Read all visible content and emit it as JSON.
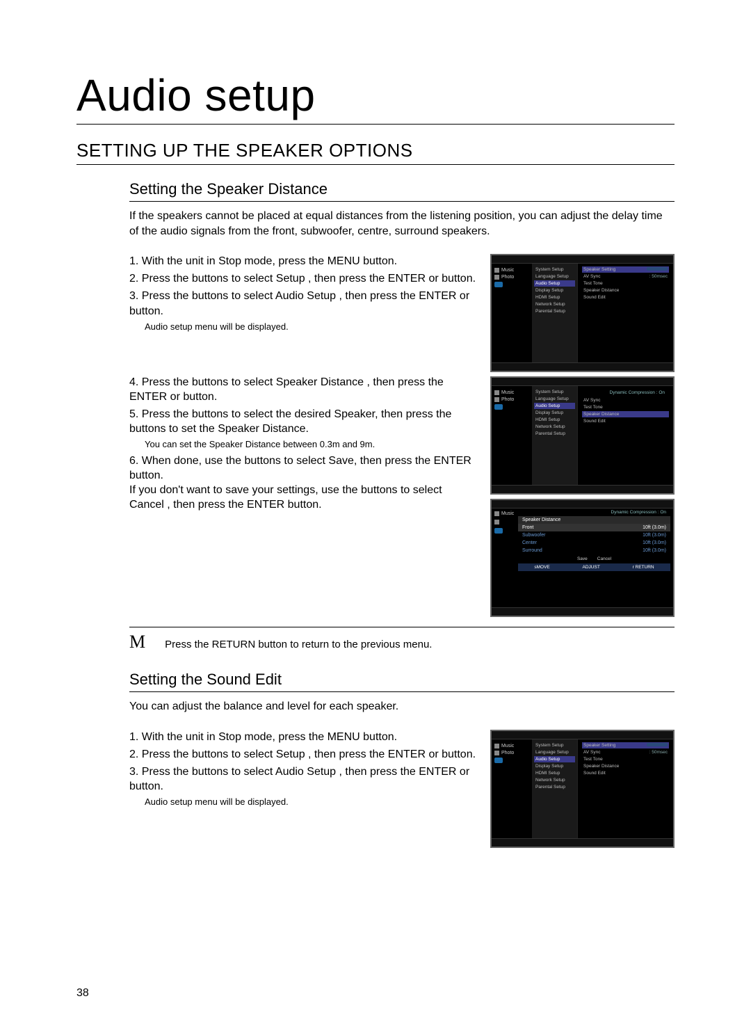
{
  "page": {
    "title": "Audio setup",
    "section": "SETTING UP THE SPEAKER OPTIONS",
    "page_number": "38"
  },
  "speaker_distance": {
    "heading": "Setting the Speaker Distance",
    "intro": "If the speakers cannot be placed at equal distances from the listening position, you can adjust the delay time of the audio signals from the front, subwoofer, centre, surround speakers.",
    "steps_a": [
      {
        "num": "1.",
        "text": "With the unit in Stop mode, press the MENU button."
      },
      {
        "num": "2.",
        "text": "Press the        buttons to select Setup , then press the ENTER or       button."
      },
      {
        "num": "3.",
        "text": "Press the        buttons to select Audio Setup , then press the ENTER or       button."
      }
    ],
    "note_a": "Audio setup menu will be displayed.",
    "steps_b": [
      {
        "num": "4.",
        "text": "Press the        buttons to select Speaker Distance , then press the ENTER or       button."
      },
      {
        "num": "5.",
        "text": "Press the        buttons to select the desired Speaker, then press the        buttons to set the Speaker Distance."
      }
    ],
    "note_b": "You can set the Speaker Distance between 0.3m and 9m.",
    "steps_c": [
      {
        "num": "6.",
        "text": "When done, use the              buttons to select Save, then press the ENTER button.\nIf you don't want to save your settings, use the buttons to select Cancel , then press the ENTER button."
      }
    ]
  },
  "return_note": "Press the RETURN button to return to the previous menu.",
  "sound_edit": {
    "heading": "Setting the Sound Edit",
    "intro": "You can adjust the balance and level for each speaker.",
    "steps": [
      {
        "num": "1.",
        "text": "With the unit in Stop mode, press the MENU button."
      },
      {
        "num": "2.",
        "text": "Press the        buttons to select Setup , then press the ENTER or       button."
      },
      {
        "num": "3.",
        "text": "Press the        buttons to select Audio Setup , then press the ENTER or       button."
      }
    ],
    "note": "Audio setup menu will be displayed."
  },
  "menus": {
    "left_categories": [
      "Music",
      "Photo",
      "Setup"
    ],
    "setup_items": [
      "System Setup",
      "Language Setup",
      "Audio Setup",
      "Display Setup",
      "HDMI Setup",
      "Network Setup",
      "Parental Setup"
    ],
    "audio_right_1": [
      {
        "label": "Speaker Setting",
        "kind": "bar"
      },
      {
        "label": "AV Sync",
        "val": ": 50msec"
      },
      {
        "label": "Test Tone",
        "kind": "blank"
      },
      {
        "label": "Speaker Distance",
        "kind": "link"
      },
      {
        "label": "Sound Edit",
        "kind": "link"
      }
    ],
    "dc_label": "Dynamic Compression : On",
    "audio_right_2": [
      "AV Sync",
      "Test Tone",
      "Speaker Distance",
      "Sound Edit"
    ],
    "dist_title": "Speaker Distance",
    "dist_rows": [
      {
        "name": "Front",
        "val": "10ft (3.0m)"
      },
      {
        "name": "Subwoofer",
        "val": "10ft (3.0m)"
      },
      {
        "name": "Center",
        "val": "10ft (3.0m)"
      },
      {
        "name": "Surround",
        "val": "10ft (3.0m)"
      }
    ],
    "dist_buttons": [
      "Save",
      "Cancel"
    ],
    "dist_footer": [
      "sMOVE",
      "ADJUST",
      "r RETURN"
    ]
  }
}
